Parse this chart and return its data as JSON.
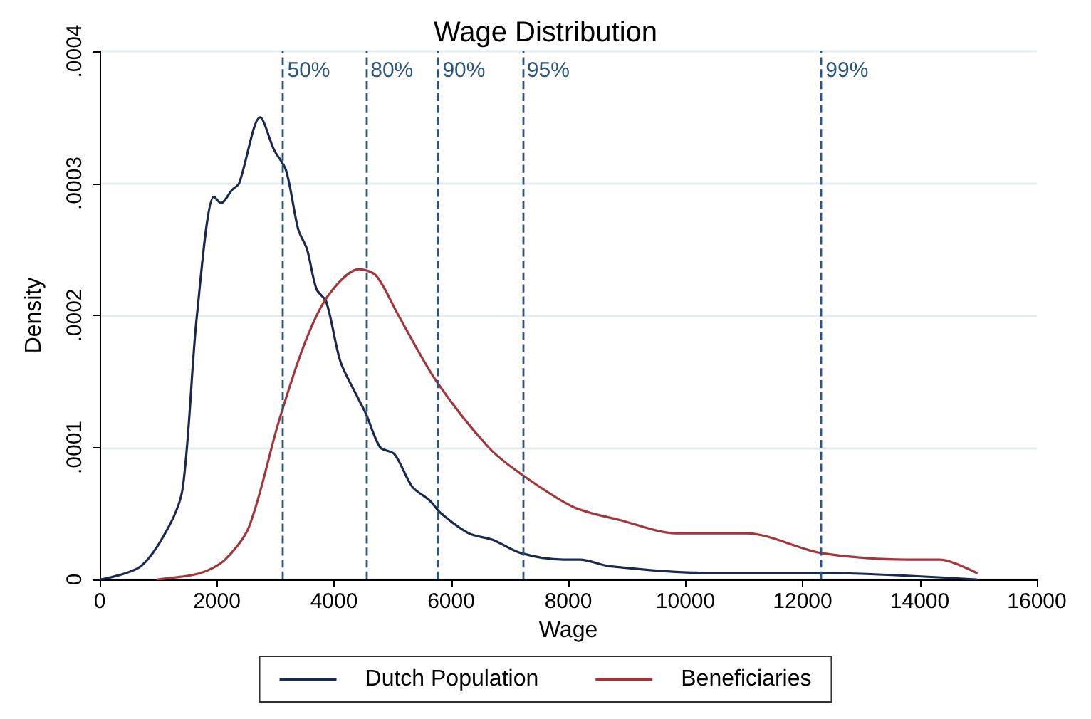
{
  "chart_data": {
    "type": "line",
    "title": "Wage Distribution",
    "xlabel": "Wage",
    "ylabel": "Density",
    "xlim": [
      0,
      16000
    ],
    "xticks": [
      0,
      2000,
      4000,
      6000,
      8000,
      10000,
      12000,
      14000,
      16000
    ],
    "ylim": [
      0,
      0.0004
    ],
    "yticks": [
      {
        "value": 0,
        "label": "0"
      },
      {
        "value": 0.0001,
        "label": ".0001"
      },
      {
        "value": 0.0002,
        "label": ".0002"
      },
      {
        "value": 0.0003,
        "label": ".0003"
      },
      {
        "value": 0.0004,
        "label": ".0004"
      }
    ],
    "grid": "y",
    "legend": "bottom",
    "marker": "none",
    "line_style": "solid",
    "series": [
      {
        "name": "Dutch Population",
        "color": "#1a2a4f",
        "x": [
          24,
          700,
          1180,
          1420,
          1660,
          1950,
          2070,
          2260,
          2380,
          2740,
          2980,
          3180,
          3390,
          3540,
          3700,
          3870,
          4110,
          4380,
          4550,
          4790,
          5030,
          5340,
          5630,
          5830,
          6300,
          6710,
          7190,
          7920,
          8200,
          8710,
          10320,
          12250,
          14970
        ],
        "values": [
          0,
          1e-05,
          4e-05,
          7e-05,
          0.0002,
          0.00029,
          0.000285,
          0.000295,
          0.0003,
          0.00035,
          0.000325,
          0.00031,
          0.000265,
          0.00025,
          0.00022,
          0.00021,
          0.000165,
          0.00014,
          0.000125,
          0.0001,
          9.5e-05,
          7e-05,
          6e-05,
          5e-05,
          3.5e-05,
          3e-05,
          2e-05,
          1.5e-05,
          1.5e-05,
          1e-05,
          5e-06,
          5e-06,
          0
        ]
      },
      {
        "name": "Beneficiaries",
        "color": "#a3363a",
        "x": [
          990,
          1730,
          2140,
          2550,
          3060,
          3510,
          3900,
          4430,
          4720,
          5100,
          5750,
          6640,
          7190,
          8080,
          8880,
          9840,
          11040,
          12320,
          13860,
          14340,
          14970
        ],
        "values": [
          0,
          5e-06,
          1.5e-05,
          4e-05,
          0.00012,
          0.00018,
          0.000215,
          0.000235,
          0.00023,
          0.0002,
          0.00015,
          0.0001,
          8e-05,
          5.5e-05,
          4.5e-05,
          3.5e-05,
          3.5e-05,
          2e-05,
          1.5e-05,
          1.5e-05,
          5e-06
        ]
      }
    ],
    "ref_lines": [
      {
        "axis": "x",
        "value": 3130,
        "color": "#2b5580",
        "line_style": "dashed"
      },
      {
        "axis": "x",
        "value": 4550,
        "color": "#2b5580",
        "line_style": "dashed"
      },
      {
        "axis": "x",
        "value": 5780,
        "color": "#2b5580",
        "line_style": "dashed"
      },
      {
        "axis": "x",
        "value": 7220,
        "color": "#2b5580",
        "line_style": "dashed"
      },
      {
        "axis": "x",
        "value": 12320,
        "color": "#2b5580",
        "line_style": "dashed"
      }
    ],
    "annotations": [
      {
        "text": "50%",
        "x": 3130,
        "y": 0.0004
      },
      {
        "text": "80%",
        "x": 4550,
        "y": 0.0004
      },
      {
        "text": "90%",
        "x": 5780,
        "y": 0.0004
      },
      {
        "text": "95%",
        "x": 7220,
        "y": 0.0004
      },
      {
        "text": "99%",
        "x": 12320,
        "y": 0.0004
      }
    ]
  }
}
